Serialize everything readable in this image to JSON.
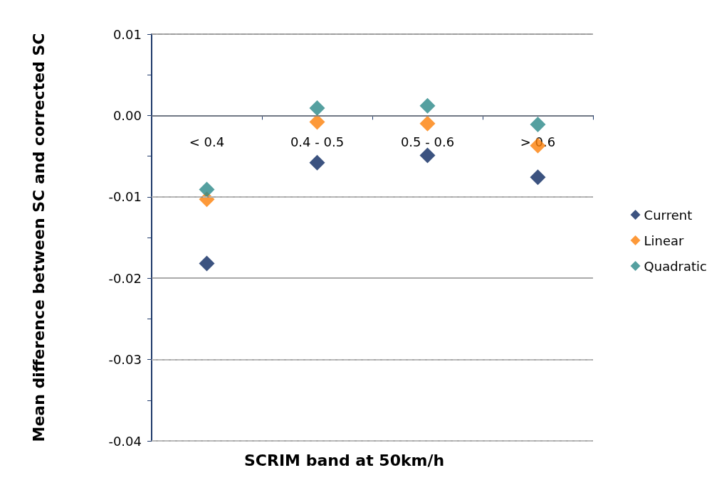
{
  "chart_data": {
    "type": "scatter",
    "xlabel": "SCRIM band at 50km/h",
    "ylabel": "Mean difference between SC and corrected SC",
    "categories": [
      "< 0.4",
      "0.4 - 0.5",
      "0.5 - 0.6",
      "> 0.6"
    ],
    "series": [
      {
        "name": "Current",
        "color": "#0b2860",
        "values": [
          -0.0182,
          -0.0058,
          -0.0049,
          -0.0076
        ]
      },
      {
        "name": "Linear",
        "color": "#fc7f07",
        "values": [
          -0.0103,
          -0.0008,
          -0.001,
          -0.0037
        ]
      },
      {
        "name": "Quadratic",
        "color": "#2a8888",
        "values": [
          -0.0091,
          0.0009,
          0.0012,
          -0.0011
        ]
      }
    ],
    "ylim": [
      -0.04,
      0.01
    ],
    "yticks": [
      -0.04,
      {
        "value": -0.035,
        "label": null
      },
      -0.03,
      {
        "value": -0.025,
        "label": null
      },
      -0.02,
      {
        "value": -0.015,
        "label": null
      },
      -0.01,
      {
        "value": -0.005,
        "label": null
      },
      {
        "value": 0,
        "label": "0.00"
      },
      {
        "value": 0.005,
        "label": null
      },
      0.01
    ],
    "grid": "y",
    "legend": "right",
    "marker": "diamond"
  }
}
